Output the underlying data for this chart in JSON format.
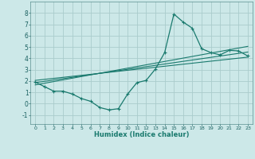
{
  "xlabel": "Humidex (Indice chaleur)",
  "bg_color": "#cce8e8",
  "grid_color": "#aacccc",
  "line_color": "#1a7a6e",
  "xlim": [
    -0.5,
    23.5
  ],
  "ylim": [
    -1.8,
    9.0
  ],
  "xticks": [
    0,
    1,
    2,
    3,
    4,
    5,
    6,
    7,
    8,
    9,
    10,
    11,
    12,
    13,
    14,
    15,
    16,
    17,
    18,
    19,
    20,
    21,
    22,
    23
  ],
  "yticks": [
    -1,
    0,
    1,
    2,
    3,
    4,
    5,
    6,
    7,
    8
  ],
  "curve_x": [
    0,
    1,
    2,
    3,
    4,
    5,
    6,
    7,
    8,
    9,
    10,
    11,
    12,
    13,
    14,
    15,
    16,
    17,
    18,
    19,
    20,
    21,
    22,
    23
  ],
  "curve_y": [
    1.9,
    1.5,
    1.1,
    1.1,
    0.85,
    0.45,
    0.2,
    -0.35,
    -0.55,
    -0.45,
    0.85,
    1.85,
    2.05,
    3.05,
    4.5,
    7.9,
    7.2,
    6.65,
    4.85,
    4.5,
    4.3,
    4.7,
    4.65,
    4.2
  ],
  "line1_x": [
    0,
    23
  ],
  "line1_y": [
    1.85,
    4.55
  ],
  "line2_x": [
    0,
    23
  ],
  "line2_y": [
    1.65,
    5.05
  ],
  "line3_x": [
    0,
    23
  ],
  "line3_y": [
    2.05,
    4.1
  ]
}
